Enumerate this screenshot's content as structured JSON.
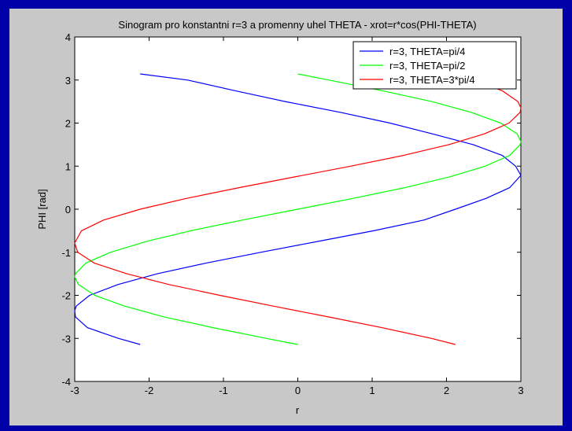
{
  "chart_data": {
    "type": "line",
    "title": "Sinogram pro konstantni r=3 a promenny uhel THETA - xrot=r*cos(PHI-THETA)",
    "xlabel": "r",
    "ylabel": "PHI [rad]",
    "xlim": [
      -3,
      3
    ],
    "ylim": [
      -4,
      4
    ],
    "xticks": [
      -3,
      -2,
      -1,
      0,
      1,
      2,
      3
    ],
    "yticks": [
      -4,
      -3,
      -2,
      -1,
      0,
      1,
      2,
      3,
      4
    ],
    "xtick_labels": [
      "-3",
      "-2",
      "-1",
      "0",
      "1",
      "2",
      "3"
    ],
    "ytick_labels": [
      "-4",
      "-3",
      "-2",
      "-1",
      "0",
      "1",
      "2",
      "3",
      "4"
    ],
    "grid": false,
    "legend_position": "top-right",
    "series": [
      {
        "name": "r=3, THETA=pi/4",
        "color": "#0000ff",
        "y": [
          -3.1416,
          -3.0,
          -2.75,
          -2.5,
          -2.3562,
          -2.25,
          -2.0,
          -1.75,
          -1.5,
          -1.25,
          -1.0,
          -0.75,
          -0.5,
          -0.25,
          0.0,
          0.25,
          0.5,
          0.7854,
          1.0,
          1.25,
          1.5,
          1.75,
          2.0,
          2.25,
          2.5,
          2.75,
          3.0,
          3.1416
        ],
        "x": [
          -2.12,
          -2.41,
          -2.83,
          -2.99,
          -3.0,
          -2.98,
          -2.8,
          -2.42,
          -1.89,
          -1.23,
          -0.5,
          0.26,
          1.02,
          1.7,
          2.12,
          2.53,
          2.85,
          3.0,
          2.93,
          2.75,
          2.36,
          1.81,
          1.24,
          0.57,
          -0.17,
          -0.84,
          -1.48,
          -2.12
        ]
      },
      {
        "name": "r=3, THETA=pi/2",
        "color": "#00ff00",
        "y": [
          -3.1416,
          -3.0,
          -2.75,
          -2.5,
          -2.25,
          -2.0,
          -1.75,
          -1.5708,
          -1.5,
          -1.25,
          -1.0,
          -0.75,
          -0.5,
          -0.25,
          0.0,
          0.25,
          0.5,
          0.75,
          1.0,
          1.25,
          1.5,
          1.5708,
          1.75,
          2.0,
          2.25,
          2.5,
          2.75,
          3.0,
          3.1416
        ],
        "x": [
          0.0,
          -0.42,
          -1.14,
          -1.8,
          -2.33,
          -2.73,
          -2.95,
          -3.0,
          -2.99,
          -2.85,
          -2.52,
          -2.04,
          -1.44,
          -0.74,
          0.0,
          0.74,
          1.44,
          2.04,
          2.52,
          2.85,
          2.99,
          3.0,
          2.95,
          2.73,
          2.33,
          1.8,
          1.14,
          0.42,
          0.0
        ]
      },
      {
        "name": "r=3, THETA=3*pi/4",
        "color": "#ff0000",
        "y": [
          -3.1416,
          -3.0,
          -2.75,
          -2.5,
          -2.25,
          -2.0,
          -1.75,
          -1.5,
          -1.25,
          -1.0,
          -0.7854,
          -0.5,
          -0.25,
          0.0,
          0.25,
          0.5,
          0.75,
          1.0,
          1.25,
          1.5,
          1.75,
          2.0,
          2.25,
          2.3562,
          2.5,
          2.75,
          3.0,
          3.1416
        ],
        "x": [
          2.12,
          1.8,
          1.13,
          0.41,
          -0.33,
          -1.05,
          -1.73,
          -2.3,
          -2.74,
          -2.96,
          -3.0,
          -2.91,
          -2.61,
          -2.12,
          -1.5,
          -0.79,
          -0.04,
          0.71,
          1.42,
          2.03,
          2.51,
          2.84,
          2.99,
          3.0,
          2.96,
          2.75,
          2.38,
          2.12
        ]
      }
    ]
  }
}
